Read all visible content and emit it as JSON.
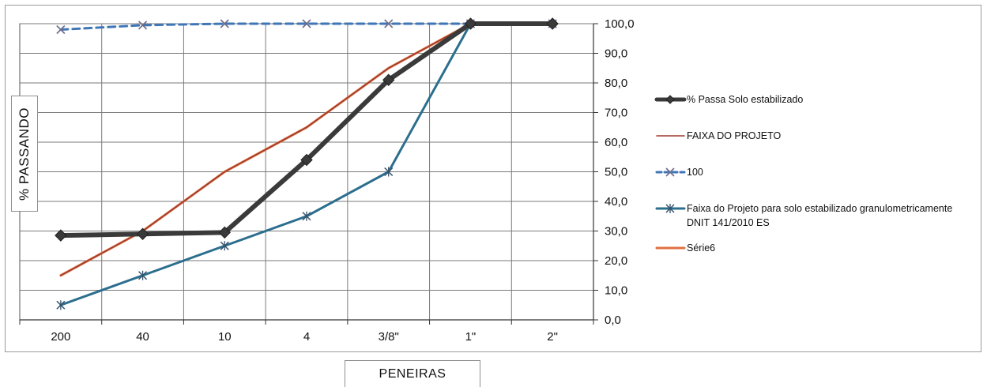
{
  "chart_data": {
    "type": "line",
    "categories": [
      "200",
      "40",
      "10",
      "4",
      "3/8\"",
      "1\"",
      "2\""
    ],
    "ylabel": "% PASSANDO",
    "xlabel": "PENEIRAS",
    "ylim": [
      0,
      100
    ],
    "y_ticks": [
      "0,0",
      "10,0",
      "20,0",
      "30,0",
      "40,0",
      "50,0",
      "60,0",
      "70,0",
      "80,0",
      "90,0",
      "100,0"
    ],
    "y_axis_position": "right",
    "grid": true,
    "legend_position": "right",
    "series": [
      {
        "name": "% Passa Solo estabilizado",
        "values": [
          28.5,
          29,
          29.5,
          54,
          81,
          100,
          100
        ],
        "color": "#3a3a3a",
        "marker": "diamond",
        "width": 6,
        "dash": ""
      },
      {
        "name": "FAIXA DO PROJETO",
        "values": [
          15,
          30,
          50,
          65,
          85,
          100,
          100
        ],
        "color": "#9c3a2e",
        "marker": "none",
        "width": 1.5,
        "dash": ""
      },
      {
        "name": "100",
        "values": [
          98,
          99.5,
          100,
          100,
          100,
          100,
          100
        ],
        "color": "#3f76b6",
        "marker": "x",
        "width": 3,
        "dash": "9,6"
      },
      {
        "name": "Faixa do Projeto para solo estabilizado granulometricamente DNIT 141/2010 ES",
        "values": [
          5,
          15,
          25,
          35,
          50,
          100,
          100
        ],
        "color": "#2c6e8e",
        "marker": "star",
        "width": 3,
        "dash": ""
      },
      {
        "name": "Série6",
        "values": [
          15,
          30,
          50,
          65,
          85,
          100,
          100
        ],
        "color": "#e07040",
        "marker": "none",
        "width": 3,
        "dash": ""
      }
    ]
  }
}
